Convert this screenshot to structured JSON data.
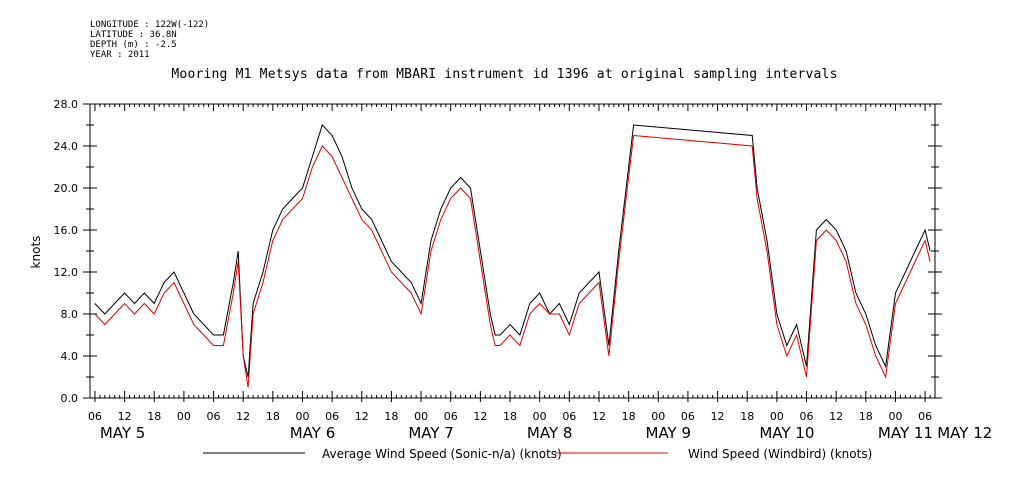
{
  "meta": {
    "longitude": "LONGITUDE : 122W(-122)",
    "latitude": "LATITUDE : 36.8N",
    "depth": "DEPTH (m) : -2.5",
    "year": "YEAR : 2011"
  },
  "chart_data": {
    "type": "line",
    "title": "Mooring M1 Metsys data from MBARI instrument id 1396 at original sampling intervals",
    "ylabel": "knots",
    "xlabel": "",
    "ylim": [
      0,
      28
    ],
    "yticks": [
      "0.0",
      "4.0",
      "8.0",
      "12.0",
      "16.0",
      "20.0",
      "24.0",
      "28.0"
    ],
    "xlim_hours": [
      -19,
      152
    ],
    "xtick_labels": [
      "06",
      "12",
      "18",
      "00",
      "06",
      "12",
      "18",
      "00",
      "06",
      "12",
      "18",
      "00",
      "06",
      "12",
      "18",
      "00",
      "06",
      "12",
      "18",
      "00",
      "06",
      "12",
      "18",
      "00",
      "06",
      "12",
      "18",
      "00",
      "06"
    ],
    "date_labels": [
      "MAY  5",
      "MAY  6",
      "MAY  7",
      "MAY  8",
      "MAY  9",
      "MAY 10",
      "MAY 11",
      "MAY 12"
    ],
    "grid": false,
    "legend_position": "bottom",
    "series": [
      {
        "name": "Average Wind Speed (Sonic-n/a) (knots)",
        "color": "#000000",
        "x": [
          -18,
          -16,
          -14,
          -12,
          -10,
          -8,
          -6,
          -4,
          -2,
          0,
          2,
          4,
          6,
          8,
          10,
          11,
          12,
          13,
          14,
          16,
          18,
          20,
          22,
          24,
          26,
          28,
          30,
          32,
          34,
          36,
          38,
          40,
          42,
          44,
          46,
          48,
          50,
          52,
          54,
          56,
          58,
          60,
          62,
          63,
          64,
          66,
          68,
          70,
          72,
          74,
          76,
          78,
          80,
          82,
          84,
          86,
          88,
          90,
          91,
          115,
          116,
          118,
          120,
          122,
          124,
          126,
          128,
          130,
          132,
          134,
          136,
          138,
          140,
          142,
          144,
          146,
          148,
          150,
          151
        ],
        "y": [
          9,
          8,
          9,
          10,
          9,
          10,
          9,
          11,
          12,
          10,
          8,
          7,
          6,
          6,
          11,
          14,
          4,
          2,
          9,
          12,
          16,
          18,
          19,
          20,
          23,
          26,
          25,
          23,
          20,
          18,
          17,
          15,
          13,
          12,
          11,
          9,
          15,
          18,
          20,
          21,
          20,
          14,
          8,
          6,
          6,
          7,
          6,
          9,
          10,
          8,
          9,
          7,
          10,
          11,
          12,
          5,
          14,
          22,
          26,
          25,
          20,
          15,
          8,
          5,
          7,
          3,
          16,
          17,
          16,
          14,
          10,
          8,
          5,
          3,
          10,
          12,
          14,
          16,
          14
        ]
      },
      {
        "name": "Wind Speed (Windbird) (knots)",
        "color": "#dd0000",
        "x": [
          -18,
          -16,
          -14,
          -12,
          -10,
          -8,
          -6,
          -4,
          -2,
          0,
          2,
          4,
          6,
          8,
          10,
          11,
          12,
          13,
          14,
          16,
          18,
          20,
          22,
          24,
          26,
          28,
          30,
          32,
          34,
          36,
          38,
          40,
          42,
          44,
          46,
          48,
          50,
          52,
          54,
          56,
          58,
          60,
          62,
          63,
          64,
          66,
          68,
          70,
          72,
          74,
          76,
          78,
          80,
          82,
          84,
          86,
          88,
          90,
          91,
          115,
          116,
          118,
          120,
          122,
          124,
          126,
          128,
          130,
          132,
          134,
          136,
          138,
          140,
          142,
          144,
          146,
          148,
          150,
          151
        ],
        "y": [
          8,
          7,
          8,
          9,
          8,
          9,
          8,
          10,
          11,
          9,
          7,
          6,
          5,
          5,
          10,
          13,
          4,
          1,
          8,
          11,
          15,
          17,
          18,
          19,
          22,
          24,
          23,
          21,
          19,
          17,
          16,
          14,
          12,
          11,
          10,
          8,
          14,
          17,
          19,
          20,
          19,
          13,
          7,
          5,
          5,
          6,
          5,
          8,
          9,
          8,
          8,
          6,
          9,
          10,
          11,
          4,
          13,
          21,
          25,
          24,
          19,
          14,
          7,
          4,
          6,
          2,
          15,
          16,
          15,
          13,
          9,
          7,
          4,
          2,
          9,
          11,
          13,
          15,
          13
        ]
      }
    ]
  }
}
